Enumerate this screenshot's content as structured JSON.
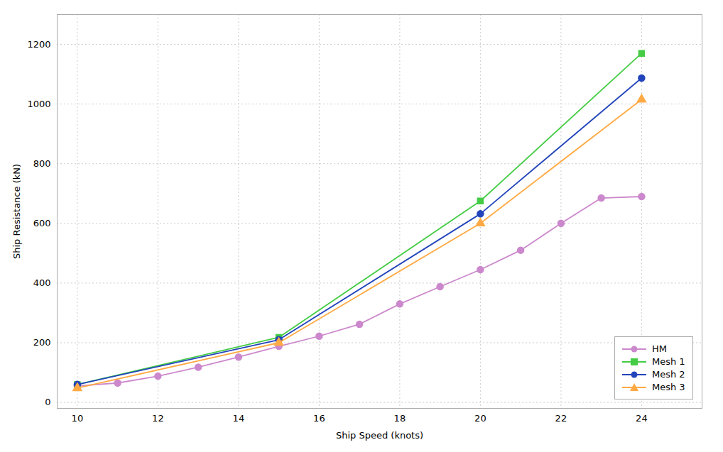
{
  "chart_data": {
    "type": "line",
    "xlabel": "Ship Speed (knots)",
    "ylabel": "Ship Resistance (kN)",
    "xlim": [
      9.5,
      25.5
    ],
    "ylim": [
      -20,
      1300
    ],
    "xticks": [
      10,
      12,
      14,
      16,
      18,
      20,
      22,
      24
    ],
    "yticks": [
      0,
      200,
      400,
      600,
      800,
      1000,
      1200
    ],
    "grid": true,
    "legend": "lower right",
    "series": [
      {
        "name": "HM",
        "color": "#cc88cc",
        "marker": "circle",
        "x": [
          10,
          11,
          12,
          13,
          14,
          15,
          16,
          17,
          18,
          19,
          20,
          21,
          22,
          23,
          24
        ],
        "values": [
          55,
          65,
          88,
          118,
          152,
          188,
          222,
          262,
          330,
          388,
          445,
          510,
          600,
          685,
          690
        ]
      },
      {
        "name": "Mesh 1",
        "color": "#44cc44",
        "marker": "square",
        "x": [
          10,
          15,
          20,
          24
        ],
        "values": [
          60,
          218,
          675,
          1170
        ]
      },
      {
        "name": "Mesh 2",
        "color": "#2244bb",
        "marker": "circle",
        "x": [
          10,
          15,
          20,
          24
        ],
        "values": [
          60,
          210,
          632,
          1087
        ]
      },
      {
        "name": "Mesh 3",
        "color": "#ffaa44",
        "marker": "triangle",
        "x": [
          10,
          15,
          20,
          24
        ],
        "values": [
          48,
          200,
          600,
          1015
        ]
      }
    ]
  }
}
